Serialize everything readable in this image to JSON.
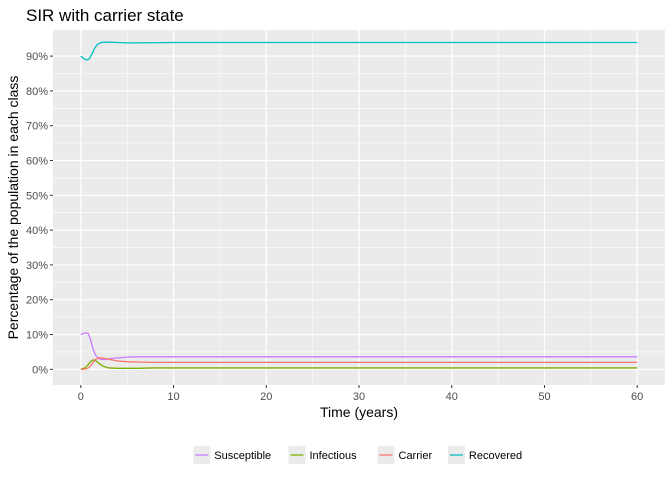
{
  "chart_data": {
    "type": "line",
    "title": "SIR with carrier state",
    "xlabel": "Time (years)",
    "ylabel": "Percentage of the population in each class",
    "xlim": [
      -3,
      63
    ],
    "ylim": [
      -4.5,
      97.5
    ],
    "x_ticks": [
      0,
      10,
      20,
      30,
      40,
      50,
      60
    ],
    "x_tick_labels": [
      "0",
      "10",
      "20",
      "30",
      "40",
      "50",
      "60"
    ],
    "y_ticks": [
      0,
      10,
      20,
      30,
      40,
      50,
      60,
      70,
      80,
      90
    ],
    "y_tick_labels": [
      "0%",
      "10%",
      "20%",
      "30%",
      "40%",
      "50%",
      "60%",
      "70%",
      "80%",
      "90%"
    ],
    "grid": true,
    "legend_position": "bottom",
    "series": [
      {
        "name": "Susceptible",
        "color": "#C77CFF",
        "x": [
          0,
          0.5,
          0.8,
          1.0,
          1.3,
          1.6,
          2.0,
          2.5,
          3.0,
          4.0,
          5.0,
          6.0,
          8.0,
          10.0,
          20.0,
          30.0,
          40.0,
          50.0,
          60.0
        ],
        "y": [
          10.0,
          10.5,
          10.3,
          9.0,
          6.0,
          4.0,
          3.0,
          2.8,
          3.0,
          3.3,
          3.5,
          3.6,
          3.6,
          3.6,
          3.6,
          3.6,
          3.6,
          3.6,
          3.6
        ]
      },
      {
        "name": "Infectious",
        "color": "#7CAE00",
        "x": [
          0,
          0.5,
          0.8,
          1.0,
          1.3,
          1.6,
          2.0,
          2.5,
          3.0,
          4.0,
          5.0,
          6.0,
          8.0,
          10.0,
          20.0,
          30.0,
          40.0,
          50.0,
          60.0
        ],
        "y": [
          0.0,
          0.5,
          1.4,
          2.1,
          2.7,
          2.5,
          1.6,
          0.8,
          0.4,
          0.3,
          0.3,
          0.3,
          0.4,
          0.4,
          0.4,
          0.4,
          0.4,
          0.4,
          0.4
        ]
      },
      {
        "name": "Carrier",
        "color": "#F8766D",
        "x": [
          0,
          0.5,
          0.8,
          1.0,
          1.3,
          1.6,
          2.0,
          2.5,
          3.0,
          4.0,
          5.0,
          6.0,
          8.0,
          10.0,
          20.0,
          30.0,
          40.0,
          50.0,
          60.0
        ],
        "y": [
          0.0,
          0.1,
          0.4,
          0.9,
          1.9,
          2.9,
          3.3,
          3.2,
          2.9,
          2.4,
          2.2,
          2.1,
          2.0,
          2.0,
          2.0,
          2.0,
          2.0,
          2.0,
          2.0
        ]
      },
      {
        "name": "Recovered",
        "color": "#00BFC4",
        "x": [
          0,
          0.3,
          0.6,
          0.9,
          1.2,
          1.5,
          1.8,
          2.2,
          2.6,
          3.0,
          4.0,
          5.0,
          6.0,
          10.0,
          20.0,
          30.0,
          40.0,
          50.0,
          60.0
        ],
        "y": [
          90.0,
          89.3,
          88.9,
          89.2,
          90.6,
          92.3,
          93.4,
          93.9,
          94.0,
          94.0,
          93.9,
          93.8,
          93.8,
          93.9,
          93.9,
          93.9,
          93.9,
          93.9,
          93.9
        ]
      }
    ]
  }
}
